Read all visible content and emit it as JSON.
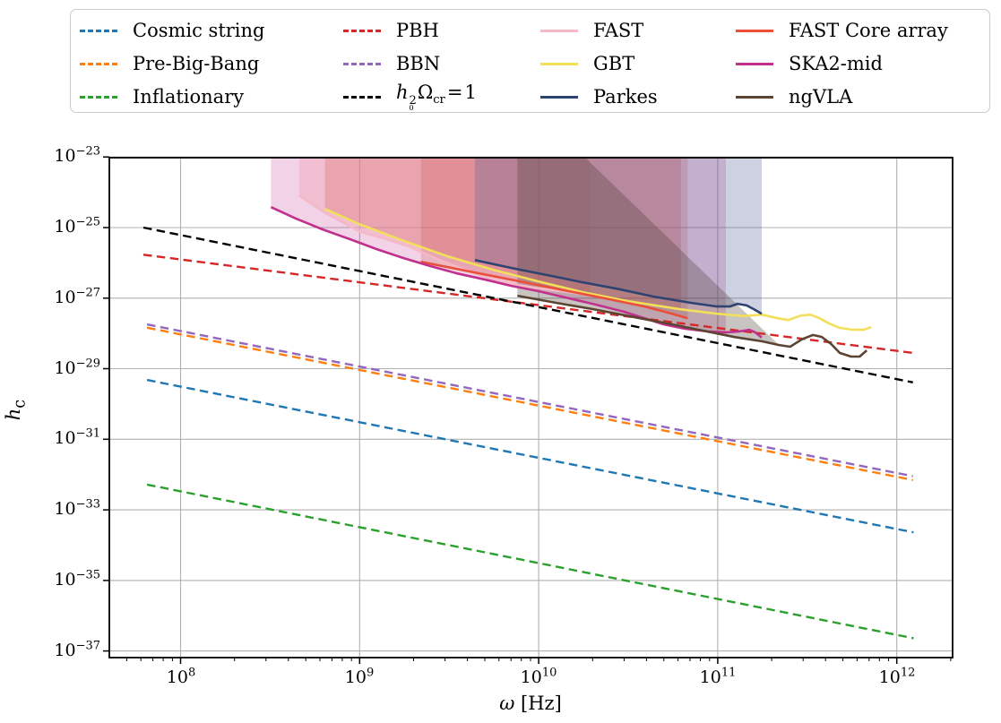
{
  "figure": {
    "kind": "matplotlib-style log-log sensitivity plot",
    "background": "#ffffff",
    "grid_color": "#b0b0b0",
    "spine_color": "#000000"
  },
  "legend": {
    "columns": [
      [
        {
          "series": "Cosmic string"
        },
        {
          "series": "Pre-Big-Bang"
        },
        {
          "series": "Inflationary"
        }
      ],
      [
        {
          "series": "PBH"
        },
        {
          "series": "BBN"
        },
        {
          "series": "h0^2 Omega_cr = 1",
          "label_html": "<i>h</i><span class=\"ss\"><sup>2</sup><sub>0</sub></span>Ω<sub>cr</sub>&#8202;=&#8202;1"
        }
      ],
      [
        {
          "series": "FAST"
        },
        {
          "series": "GBT"
        },
        {
          "series": "Parkes"
        }
      ],
      [
        {
          "series": "FAST Core array"
        },
        {
          "series": "SKA2-mid"
        },
        {
          "series": "ngVLA"
        }
      ]
    ]
  },
  "chart_data": {
    "type": "line",
    "title": "",
    "xlabel": "ω [Hz]",
    "ylabel": "h_c",
    "xlabel_html": "<i>ω</i> [Hz]",
    "ylabel_html": "<i>h</i><sub>c</sub>",
    "xscale": "log",
    "yscale": "log",
    "xlim": [
      40000000.0,
      2050000000000.0
    ],
    "ylim": [
      6.5e-38,
      9.55e-24
    ],
    "x_tick_exponents": [
      8,
      9,
      10,
      11,
      12
    ],
    "y_tick_exponents": [
      -23,
      -25,
      -27,
      -29,
      -31,
      -33,
      -35,
      -37
    ],
    "grid": true,
    "legend_position": "top",
    "series": [
      {
        "name": "Cosmic string",
        "color": "#1f77b4",
        "dash": true,
        "points": [
          [
            65000000.0,
            4.8e-30
          ],
          [
            1240000000000.0,
            2.3e-34
          ]
        ]
      },
      {
        "name": "Pre-Big-Bang",
        "color": "#ff7f0e",
        "dash": true,
        "points": [
          [
            65000000.0,
            1.45e-28
          ],
          [
            1230000000000.0,
            7e-33
          ]
        ]
      },
      {
        "name": "Inflationary",
        "color": "#2ca02c",
        "dash": true,
        "points": [
          [
            65000000.0,
            5.2e-33
          ],
          [
            1240000000000.0,
            2.3e-37
          ]
        ]
      },
      {
        "name": "BBN",
        "color": "#9467bd",
        "dash": true,
        "points": [
          [
            65000000.0,
            1.8e-28
          ],
          [
            1230000000000.0,
            9e-33
          ]
        ]
      },
      {
        "name": "PBH",
        "color": "#d62728",
        "dash": true,
        "points": [
          [
            62000000.0,
            1.7e-26
          ],
          [
            1230000000000.0,
            2.8e-29
          ]
        ]
      },
      {
        "name": "h0^2 Omega_cr = 1",
        "color": "#000000",
        "dash": true,
        "points": [
          [
            62000000.0,
            1e-25
          ],
          [
            1230000000000.0,
            4.1e-30
          ]
        ]
      },
      {
        "name": "FAST",
        "color": "#f5b8c4",
        "dash": false,
        "points": [
          [
            460000000.0,
            8.1e-25
          ],
          [
            635000000.0,
            2.7e-25
          ],
          [
            990000000.0,
            7.9e-26
          ],
          [
            1400000000.0,
            4.7e-26
          ],
          [
            1860000000.0,
            3e-26
          ],
          [
            2800000000.0,
            1.2e-26
          ],
          [
            4200000000.0,
            5.4e-27
          ],
          [
            6200000000.0,
            2.8e-27
          ],
          [
            9300000000.0,
            2e-27
          ],
          [
            13200000000.0,
            1.58e-27
          ],
          [
            19300000000.0,
            1.24e-27
          ]
        ]
      },
      {
        "name": "GBT",
        "color": "#f2df5a",
        "dash": false,
        "points": [
          [
            640000000.0,
            3.4e-25
          ],
          [
            990000000.0,
            1.26e-25
          ],
          [
            1760000000.0,
            4.2e-26
          ],
          [
            3100000000.0,
            1.53e-26
          ],
          [
            5600000000.0,
            6.3e-27
          ],
          [
            9900000000.0,
            3e-27
          ],
          [
            17600000000.0,
            1.48e-27
          ],
          [
            31000000000.0,
            8.3e-28
          ],
          [
            56000000000.0,
            5.2e-28
          ],
          [
            62400000000.0,
            4.8e-28
          ],
          [
            99000000000.0,
            3.6e-28
          ],
          [
            140000000000.0,
            3.1e-28
          ],
          [
            176000000000.0,
            3.4e-28
          ],
          [
            216000000000.0,
            2.7e-28
          ],
          [
            248000000000.0,
            2.4e-28
          ],
          [
            290000000000.0,
            3.2e-28
          ],
          [
            330000000000.0,
            3.4e-28
          ],
          [
            370000000000.0,
            2.7e-28
          ],
          [
            420000000000.0,
            1.9e-28
          ],
          [
            480000000000.0,
            1.44e-28
          ],
          [
            570000000000.0,
            1.27e-28
          ],
          [
            650000000000.0,
            1.27e-28
          ],
          [
            720000000000.0,
            1.5e-28
          ]
        ]
      },
      {
        "name": "FAST Core array",
        "color": "#ea4f3b",
        "dash": false,
        "points": [
          [
            2200000000.0,
            1.07e-26
          ],
          [
            3900000000.0,
            6e-27
          ],
          [
            7000000000.0,
            3.35e-27
          ],
          [
            12400000000.0,
            1.86e-27
          ],
          [
            22000000000.0,
            1.05e-27
          ],
          [
            39000000000.0,
            5.8e-28
          ],
          [
            52500000000.0,
            3.9e-28
          ],
          [
            68000000000.0,
            2.7e-28
          ]
        ]
      },
      {
        "name": "Parkes",
        "color": "#2e4372",
        "dash": false,
        "points": [
          [
            4400000000.0,
            1.2e-26
          ],
          [
            7000000000.0,
            7.2e-27
          ],
          [
            11100000000.0,
            4.5e-27
          ],
          [
            17600000000.0,
            2.8e-27
          ],
          [
            28000000000.0,
            1.8e-27
          ],
          [
            44000000000.0,
            1.1e-27
          ],
          [
            70000000000.0,
            7.4e-28
          ],
          [
            99000000000.0,
            5.8e-28
          ],
          [
            117000000000.0,
            5.8e-28
          ],
          [
            129000000000.0,
            6.9e-28
          ],
          [
            145000000000.0,
            6.2e-28
          ],
          [
            162000000000.0,
            4.6e-28
          ],
          [
            176000000000.0,
            3.6e-28
          ]
        ]
      },
      {
        "name": "SKA2-mid",
        "color": "#c0308c",
        "dash": false,
        "points": [
          [
            320000000.0,
            3.8e-25
          ],
          [
            440000000.0,
            1.8e-25
          ],
          [
            620000000.0,
            8.9e-26
          ],
          [
            880000000.0,
            4.7e-26
          ],
          [
            1240000000.0,
            2.45e-26
          ],
          [
            1760000000.0,
            1.36e-26
          ],
          [
            2480000000.0,
            8.1e-27
          ],
          [
            3500000000.0,
            5e-27
          ],
          [
            4950000000.0,
            3.4e-27
          ],
          [
            7000000000.0,
            2.24e-27
          ],
          [
            9900000000.0,
            1.58e-27
          ],
          [
            14000000000.0,
            1.05e-27
          ],
          [
            20000000000.0,
            6.9e-28
          ],
          [
            30000000000.0,
            4.1e-28
          ],
          [
            39000000000.0,
            2.7e-28
          ],
          [
            50000000000.0,
            1.8e-28
          ],
          [
            66000000000.0,
            1.35e-28
          ],
          [
            88000000000.0,
            1.14e-28
          ],
          [
            111000000000.0,
            1.07e-28
          ],
          [
            132000000000.0,
            1.14e-28
          ],
          [
            150000000000.0,
            1.27e-28
          ],
          [
            162000000000.0,
            1.07e-28
          ],
          [
            176000000000.0,
            7.6e-29
          ]
        ]
      },
      {
        "name": "ngVLA",
        "color": "#5c4433",
        "dash": false,
        "points": [
          [
            7600000000.0,
            1.17e-27
          ],
          [
            12400000000.0,
            7.4e-28
          ],
          [
            20000000000.0,
            4.9e-28
          ],
          [
            31000000000.0,
            3.2e-28
          ],
          [
            50000000000.0,
            2e-28
          ],
          [
            78500000000.0,
            1.27e-28
          ],
          [
            124000000000.0,
            7.9e-29
          ],
          [
            176000000000.0,
            6e-29
          ],
          [
            220000000000.0,
            4.7e-29
          ],
          [
            254000000000.0,
            4.2e-29
          ],
          [
            295000000000.0,
            6.8e-29
          ],
          [
            340000000000.0,
            9e-29
          ],
          [
            380000000000.0,
            8e-29
          ],
          [
            430000000000.0,
            5e-29
          ],
          [
            480000000000.0,
            2.8e-29
          ],
          [
            555000000000.0,
            2.2e-29
          ],
          [
            620000000000.0,
            2.2e-29
          ],
          [
            680000000000.0,
            3.3e-29
          ]
        ]
      }
    ],
    "fills": [
      {
        "name": "SKA2-mid band",
        "series": "SKA2-mid",
        "x_from": 320000000.0,
        "x_to": 111000000000.0,
        "color": "#c0308c",
        "opacity": 0.22
      },
      {
        "name": "FAST band",
        "series": "FAST",
        "x_from": 460000000.0,
        "x_to": 19300000000.0,
        "color": "#f2a6bb",
        "opacity": 0.45
      },
      {
        "name": "GBT band",
        "series": "GBT",
        "x_from": 640000000.0,
        "x_to": 62400000000.0,
        "color": "#d96a62",
        "opacity": 0.3
      },
      {
        "name": "FAST Core array band",
        "series": "FAST Core array",
        "x_from": 2200000000.0,
        "x_to": 68000000000.0,
        "color": "#c0392b",
        "opacity": 0.18
      },
      {
        "name": "Parkes band",
        "series": "Parkes",
        "x_from": 4400000000.0,
        "x_to": 176000000000.0,
        "color": "#4a5a93",
        "opacity": 0.28
      },
      {
        "name": "ngVLA band",
        "series": "ngVLA",
        "x_from": 7600000000.0,
        "x_to": 220000000000.0,
        "color": "#4a3a33",
        "opacity": 0.3,
        "close_xs": [
          18200000000.0,
          7600000000.0
        ]
      }
    ]
  }
}
